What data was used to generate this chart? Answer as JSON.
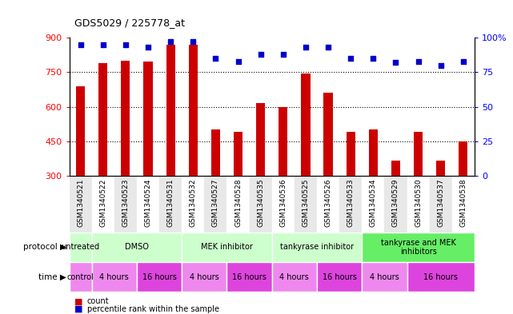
{
  "title": "GDS5029 / 225778_at",
  "samples": [
    "GSM1340521",
    "GSM1340522",
    "GSM1340523",
    "GSM1340524",
    "GSM1340531",
    "GSM1340532",
    "GSM1340527",
    "GSM1340528",
    "GSM1340535",
    "GSM1340536",
    "GSM1340525",
    "GSM1340526",
    "GSM1340533",
    "GSM1340534",
    "GSM1340529",
    "GSM1340530",
    "GSM1340537",
    "GSM1340538"
  ],
  "counts": [
    690,
    790,
    800,
    795,
    870,
    870,
    500,
    490,
    615,
    600,
    745,
    660,
    490,
    500,
    365,
    490,
    365,
    450
  ],
  "percentiles": [
    95,
    95,
    95,
    93,
    97,
    97,
    85,
    83,
    88,
    88,
    93,
    93,
    85,
    85,
    82,
    83,
    80,
    83
  ],
  "ymin": 300,
  "ymax": 900,
  "yticks": [
    300,
    450,
    600,
    750,
    900
  ],
  "right_yticks": [
    0,
    25,
    50,
    75,
    100
  ],
  "bar_color": "#cc0000",
  "dot_color": "#0000cc",
  "protocol_groups": [
    {
      "label": "untreated",
      "start": 0,
      "end": 1,
      "color": "#ccffcc"
    },
    {
      "label": "DMSO",
      "start": 1,
      "end": 5,
      "color": "#ccffcc"
    },
    {
      "label": "MEK inhibitor",
      "start": 5,
      "end": 9,
      "color": "#ccffcc"
    },
    {
      "label": "tankyrase inhibitor",
      "start": 9,
      "end": 13,
      "color": "#ccffcc"
    },
    {
      "label": "tankyrase and MEK\ninhibitors",
      "start": 13,
      "end": 18,
      "color": "#66ee66"
    }
  ],
  "time_groups": [
    {
      "label": "control",
      "start": 0,
      "end": 1,
      "color": "#ee88ee"
    },
    {
      "label": "4 hours",
      "start": 1,
      "end": 3,
      "color": "#ee88ee"
    },
    {
      "label": "16 hours",
      "start": 3,
      "end": 5,
      "color": "#dd44dd"
    },
    {
      "label": "4 hours",
      "start": 5,
      "end": 7,
      "color": "#ee88ee"
    },
    {
      "label": "16 hours",
      "start": 7,
      "end": 9,
      "color": "#dd44dd"
    },
    {
      "label": "4 hours",
      "start": 9,
      "end": 11,
      "color": "#ee88ee"
    },
    {
      "label": "16 hours",
      "start": 11,
      "end": 13,
      "color": "#dd44dd"
    },
    {
      "label": "4 hours",
      "start": 13,
      "end": 15,
      "color": "#ee88ee"
    },
    {
      "label": "16 hours",
      "start": 15,
      "end": 18,
      "color": "#dd44dd"
    }
  ],
  "bg_white": "#ffffff",
  "bg_gray": "#e8e8e8",
  "label_row_color": "#d8d8d8"
}
